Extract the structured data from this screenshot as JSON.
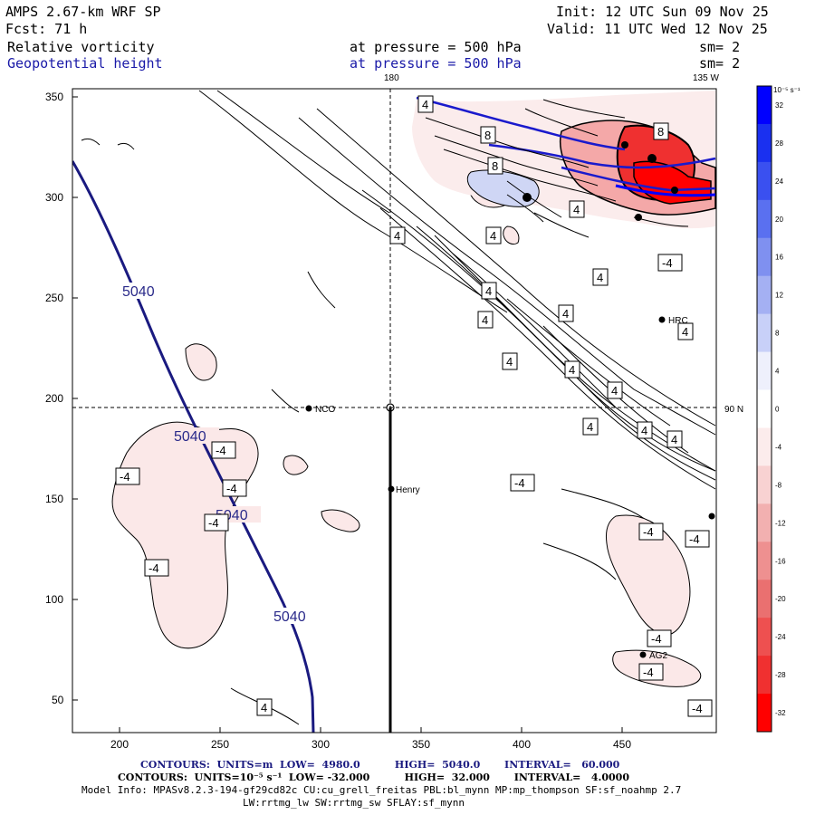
{
  "header": {
    "model": "AMPS 2.67-km WRF SP",
    "fcst": "Fcst:    71 h",
    "init": "Init: 12 UTC Sun 09 Nov 25",
    "valid": "Valid: 11 UTC Wed 12 Nov 25",
    "field1_name": "Relative vorticity",
    "field1_level": "at pressure =  500 hPa",
    "field1_sm": "sm= 2",
    "field2_name": "Geopotential height",
    "field2_level": "at pressure =  500 hPa",
    "field2_sm": "sm= 2"
  },
  "map_labels": {
    "lon_180": "180",
    "lon_135w": "135 W",
    "lat_90n": "90 N",
    "stations": [
      "NCO",
      "Henry",
      "HRC",
      "AG2"
    ]
  },
  "axes": {
    "x_ticks": [
      "200",
      "250",
      "300",
      "350",
      "400",
      "450"
    ],
    "y_ticks": [
      "350",
      "300",
      "250",
      "200",
      "150",
      "100",
      "50"
    ]
  },
  "contour_labels": {
    "height": "5040",
    "pos4": "4",
    "neg4": "-4",
    "pos8": "8"
  },
  "colorbar": {
    "unit": "10⁻⁵ s⁻¹",
    "labels": [
      "32",
      "28",
      "24",
      "20",
      "16",
      "12",
      "8",
      "4",
      "0",
      "-4",
      "-8",
      "-12",
      "-16",
      "-20",
      "-24",
      "-28",
      "-32"
    ],
    "colors": [
      "#0000ff",
      "#1a30f0",
      "#3a50f0",
      "#5a70f0",
      "#7f90f0",
      "#a4b0f3",
      "#c8d0f8",
      "#eef0fc",
      "#ffffff",
      "#fcecec",
      "#f8d2d2",
      "#f2b0b0",
      "#ee9090",
      "#ea7070",
      "#ee5050",
      "#f03030",
      "#ff0000"
    ]
  },
  "footer": {
    "line1": "CONTOURS:  UNITS=m  LOW=  4980.0          HIGH=  5040.0       INTERVAL=   60.000",
    "line2": "CONTOURS:  UNITS=10⁻⁵ s⁻¹  LOW= -32.000          HIGH=  32.000       INTERVAL=   4.0000",
    "line3": "Model Info: MPASv8.2.3-194-gf29cd82c CU:cu_grell_freitas PBL:bl_mynn MP:mp_thompson SF:sf_noahmp 2.7",
    "line4": "LW:rrtmg_lw SW:rrtmg_sw SFLAY:sf_mynn"
  }
}
